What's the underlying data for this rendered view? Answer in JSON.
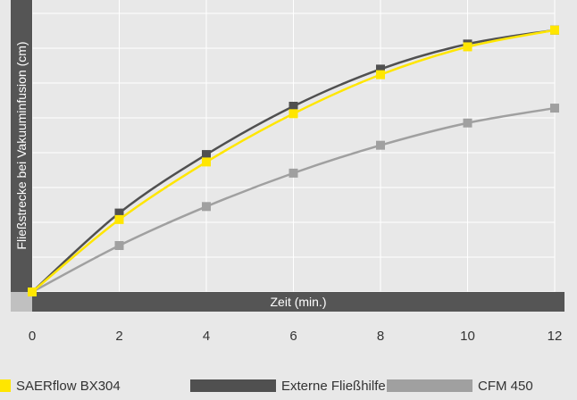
{
  "chart_data": {
    "type": "line",
    "ylabel": "Fließstrecke bei Vakuuminfusion (cm)",
    "xlabel": "Zeit (min.)",
    "xlim": [
      0,
      12
    ],
    "ylim": [
      0,
      300
    ],
    "grid": true,
    "x_ticks": [
      "0",
      "2",
      "4",
      "6",
      "8",
      "10",
      "12"
    ],
    "legend_position": "bottom",
    "series": [
      {
        "name": "SAERflow BX304",
        "color": "#ffe600",
        "x": [
          0,
          2,
          4,
          6,
          8,
          10,
          12
        ],
        "values": [
          0,
          78,
          140,
          192,
          234,
          264,
          282
        ]
      },
      {
        "name": "Externe Fließhilfe",
        "color": "#505050",
        "x": [
          0,
          2,
          4,
          6,
          8,
          10,
          12
        ],
        "values": [
          0,
          85,
          148,
          200,
          240,
          267,
          282
        ]
      },
      {
        "name": "CFM 450",
        "color": "#a0a0a0",
        "x": [
          0,
          2,
          4,
          6,
          8,
          10,
          12
        ],
        "values": [
          0,
          50,
          92,
          128,
          158,
          182,
          198
        ]
      }
    ]
  }
}
